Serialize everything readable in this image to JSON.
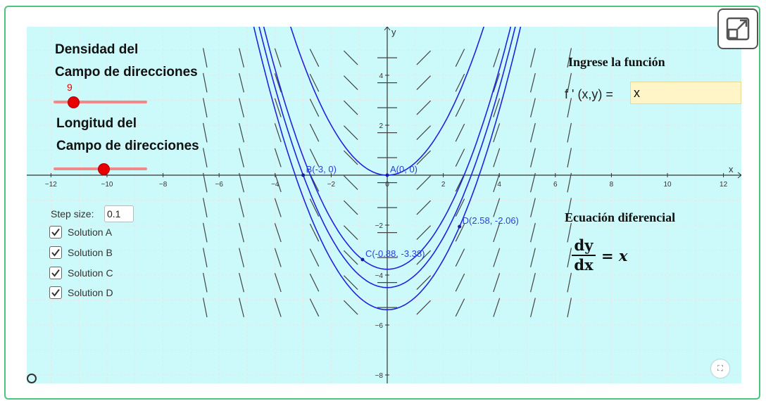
{
  "left_panel": {
    "density_title_1": "Densidad del",
    "density_title_2": "Campo de direcciones",
    "density_value": "9",
    "length_title_1": "Longitud del",
    "length_title_2": "Campo de direcciones"
  },
  "right_panel": {
    "input_heading": "Ingrese la función",
    "function_label": "f ' (x,y) =",
    "function_value": "x",
    "equation_heading": "Ecuación diferencial",
    "equation_numerator": "dy",
    "equation_denominator": "dx",
    "equation_rhs": "= x"
  },
  "controls": {
    "step_label": "Step size:",
    "step_value": "0.1",
    "solutions": [
      {
        "label": "Solution A",
        "checked": true
      },
      {
        "label": "Solution B",
        "checked": true
      },
      {
        "label": "Solution C",
        "checked": true
      },
      {
        "label": "Solution D",
        "checked": true
      }
    ]
  },
  "graph": {
    "x_axis_label": "x",
    "y_axis_label": "y",
    "x_ticks": [
      "−12",
      "−10",
      "−8",
      "−6",
      "−4",
      "−2",
      "0",
      "2",
      "4",
      "6",
      "8",
      "10",
      "12"
    ],
    "y_ticks": [
      "4",
      "2",
      "−2",
      "−4",
      "−6",
      "−8"
    ],
    "points": [
      {
        "name": "A",
        "label": "A(0, 0)",
        "x": 0,
        "y": 0
      },
      {
        "name": "B",
        "label": "B(-3, 0)",
        "x": -3,
        "y": 0
      },
      {
        "name": "C",
        "label": "C(-0.88, -3.38)",
        "x": -0.88,
        "y": -3.38
      },
      {
        "name": "D",
        "label": "D(2.58, -2.06)",
        "x": 2.58,
        "y": -2.06
      }
    ],
    "curve_color": "#2222dd",
    "field_color": "#444444",
    "background": "#ccfafa"
  },
  "icons": {
    "expand": "expand-icon",
    "pause": "pause-icon",
    "fullscreen": "fullscreen-icon"
  }
}
